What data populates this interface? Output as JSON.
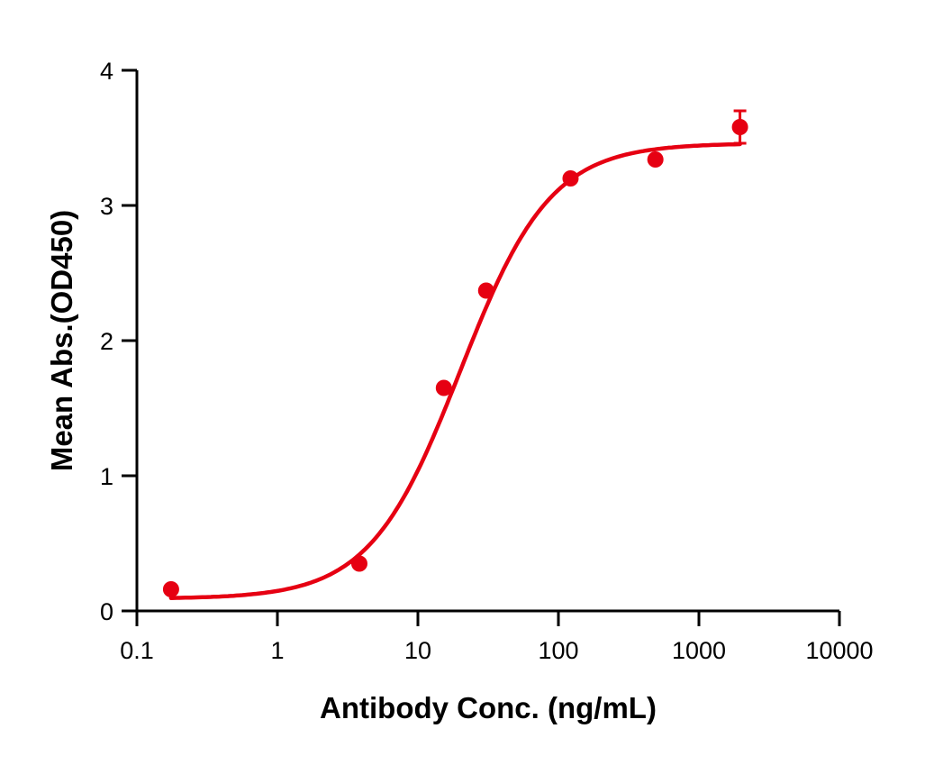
{
  "chart_data": {
    "type": "scatter",
    "title": "",
    "xlabel": "Antibody Conc. (ng/mL)",
    "ylabel": "Mean Abs.(OD450)",
    "xscale": "log",
    "xlim": [
      0.1,
      10000
    ],
    "ylim": [
      0,
      4
    ],
    "x_ticks": [
      0.1,
      1,
      10,
      100,
      1000,
      10000
    ],
    "x_tick_labels": [
      "0.1",
      "1",
      "10",
      "100",
      "1000",
      "10000"
    ],
    "y_ticks": [
      0,
      1,
      2,
      3,
      4
    ],
    "y_tick_labels": [
      "0",
      "1",
      "2",
      "3",
      "4"
    ],
    "grid": false,
    "legend": null,
    "series": [
      {
        "name": "Mean Abs.",
        "color": "#e60012",
        "x": [
          0.175,
          3.83,
          15.3,
          30.6,
          122,
          490,
          1960
        ],
        "y": [
          0.16,
          0.35,
          1.65,
          2.37,
          3.2,
          3.34,
          3.58
        ],
        "error": [
          0,
          0,
          0,
          0,
          0,
          0,
          0.12
        ]
      }
    ],
    "fit": {
      "type": "4PL sigmoidal",
      "color": "#e60012",
      "bottom": 0.09,
      "top": 3.46,
      "ec50": 20,
      "hill": 1.35,
      "x_range": [
        0.175,
        1960
      ]
    }
  }
}
